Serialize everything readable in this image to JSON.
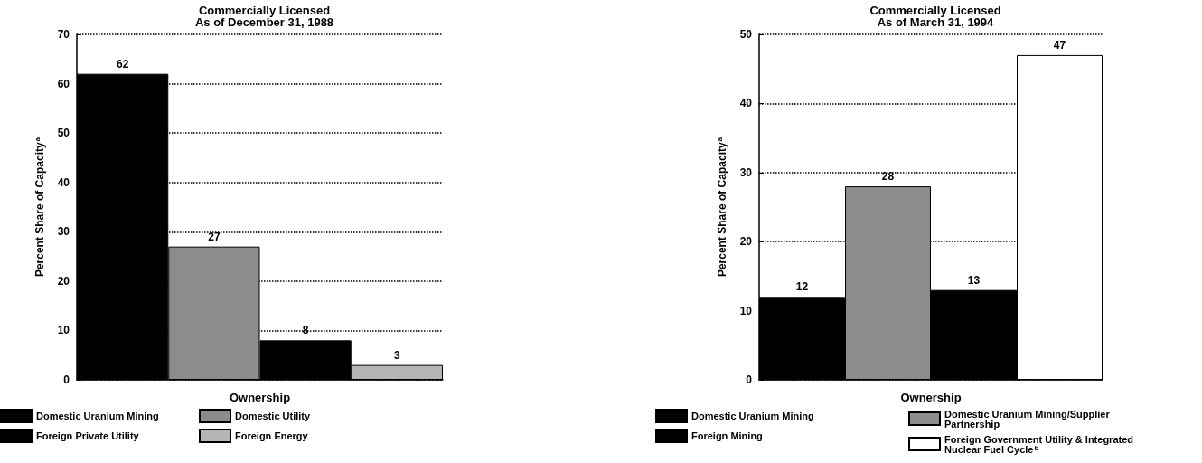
{
  "chart_data": [
    {
      "type": "bar",
      "title": "Commercially Licensed",
      "subtitle": "As of December 31, 1988",
      "xlabel": "Ownership",
      "ylabel": "Percent Share of Capacity$^{a}$",
      "categories": [
        null,
        null,
        null,
        null
      ],
      "series": [
        {
          "name": "Domestic Uranium Mining",
          "color": "#000000",
          "values": [
            62,
            null,
            null,
            null
          ]
        },
        {
          "name": "Domestic Utility",
          "color": "#8c8c8c",
          "values": [
            null,
            27,
            null,
            null
          ]
        },
        {
          "name": "Foreign Private Utility",
          "color": "#000000",
          "values": [
            null,
            null,
            8,
            null
          ]
        },
        {
          "name": "Foreign Energy",
          "color": "#b4b4b4",
          "values": [
            null,
            null,
            null,
            3
          ]
        }
      ],
      "ylim": [
        0,
        70
      ],
      "yticks": [
        0,
        10,
        20,
        30,
        40,
        50,
        60,
        70
      ],
      "grid": "y",
      "legend": "bottom",
      "data_labels": true
    },
    {
      "type": "bar",
      "title": "Commercially Licensed",
      "subtitle": "As of March 31, 1994",
      "xlabel": "Ownership",
      "ylabel": "Percent Share of Capacity$^{a}$",
      "categories": [
        null,
        null,
        null,
        null
      ],
      "series": [
        {
          "name": "Domestic Uranium Mining",
          "color": "#000000",
          "values": [
            12,
            null,
            null,
            null
          ]
        },
        {
          "name": "Domestic Uranium Mining/Supplier Partnership",
          "color": "#8c8c8c",
          "values": [
            null,
            28,
            null,
            null
          ]
        },
        {
          "name": "Foreign Mining",
          "color": "#000000",
          "values": [
            null,
            null,
            13,
            null
          ]
        },
        {
          "name": "Foreign Government Utility & Integrated Nuclear Fuel Cycle$^{b}$",
          "color": "#ffffff",
          "values": [
            null,
            null,
            null,
            47
          ]
        }
      ],
      "ylim": [
        0,
        50
      ],
      "yticks": [
        0,
        10,
        20,
        30,
        40,
        50
      ],
      "grid": "y",
      "legend": "bottom",
      "data_labels": true
    }
  ]
}
